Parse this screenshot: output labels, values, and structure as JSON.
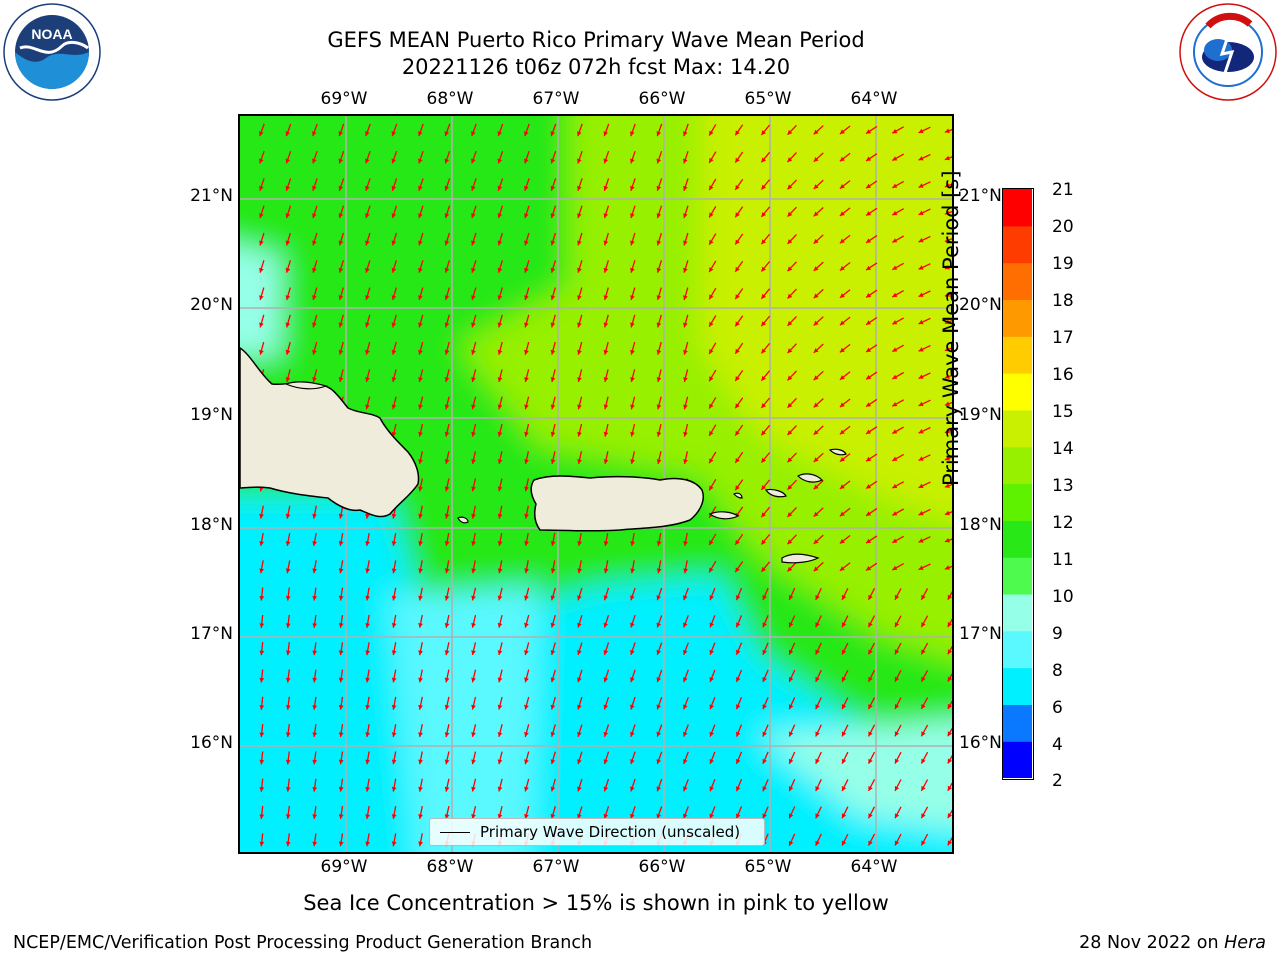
{
  "header": {
    "title_line1": "GEFS MEAN Puerto Rico Primary Wave Mean Period",
    "title_line2": "20221126 t06z 072h fcst   Max: 14.20"
  },
  "logos": {
    "left": {
      "name": "noaa-logo",
      "text": "NOAA",
      "ring_text": "NATIONAL OCEANIC AND ATMOSPHERIC ADMINISTRATION · U.S. DEPARTMENT OF COMMERCE"
    },
    "right": {
      "name": "nws-logo",
      "ring_text": "NATIONAL WEATHER SERVICE"
    }
  },
  "map": {
    "lon_labels": [
      "69°W",
      "68°W",
      "67°W",
      "66°W",
      "65°W",
      "64°W"
    ],
    "lat_labels": [
      "21°N",
      "20°N",
      "19°N",
      "18°N",
      "17°N",
      "16°N"
    ],
    "lon_range": [
      -70.0,
      -63.25
    ],
    "lat_range": [
      15.0,
      21.75
    ],
    "grid": true,
    "land_color": "#efecdc",
    "arrow_color": "#ff0000",
    "legend": "Primary Wave Direction (unscaled)"
  },
  "colorbar": {
    "ticks": [
      "21",
      "20",
      "19",
      "18",
      "17",
      "16",
      "15",
      "14",
      "13",
      "12",
      "11",
      "10",
      "9",
      "8",
      "6",
      "4",
      "2"
    ],
    "label": "Primary Wave Mean Period [s]",
    "levels": [
      2,
      4,
      6,
      8,
      9,
      10,
      11,
      12,
      13,
      14,
      15,
      16,
      17,
      18,
      19,
      20,
      21
    ],
    "colors": [
      "#0000ff",
      "#0a78ff",
      "#00f0ff",
      "#5af8ff",
      "#96ffe8",
      "#4efa4e",
      "#28e818",
      "#5ff200",
      "#96f000",
      "#c8f000",
      "#ffff00",
      "#ffcc00",
      "#ff9900",
      "#ff6e00",
      "#ff3c00",
      "#ff0000"
    ]
  },
  "caption": "Sea Ice Concentration > 15% is shown in pink to yellow",
  "footer": {
    "left": "NCEP/EMC/Verification Post Processing Product Generation Branch",
    "right_prefix": "28 Nov 2022 on ",
    "right_host": "Hera"
  }
}
